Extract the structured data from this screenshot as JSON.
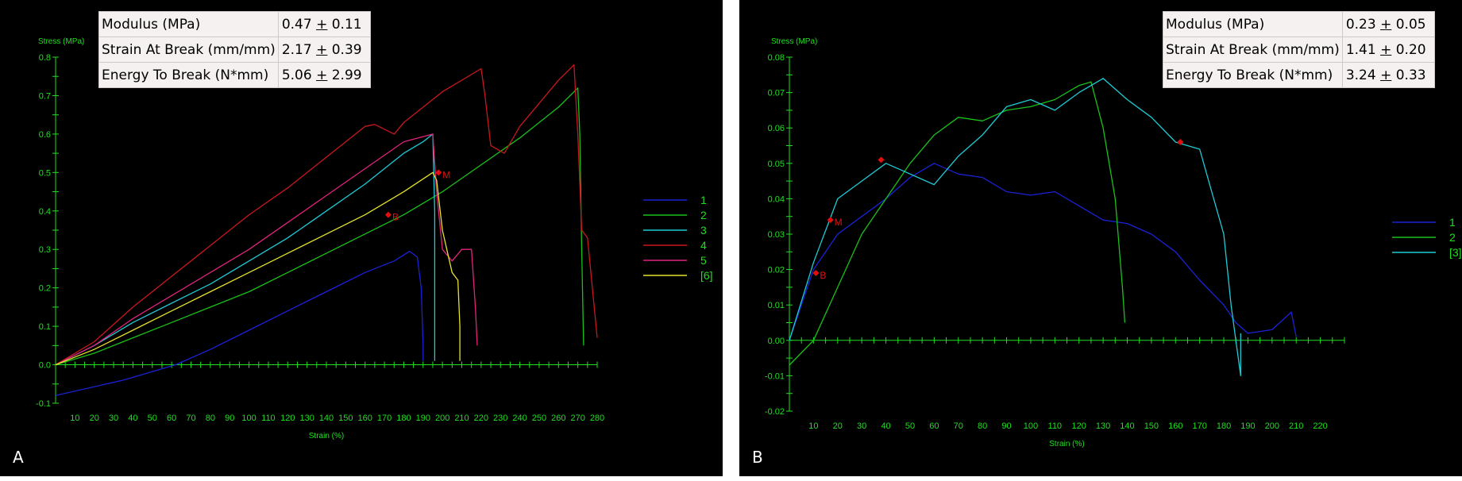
{
  "panels": [
    {
      "id": "a",
      "label": "A",
      "stats": [
        {
          "name": "Modulus (MPa)",
          "value": "0.47",
          "pm": "+",
          "err": "0.11"
        },
        {
          "name": "Strain At Break (mm/mm)",
          "value": "2.17",
          "pm": "+",
          "err": "0.39"
        },
        {
          "name": "Energy To Break (N*mm)",
          "value": "5.06",
          "pm": "+",
          "err": "2.99"
        }
      ],
      "chart_data": {
        "type": "line",
        "ylabel": "Stress (MPa)",
        "xlabel": "Strain (%)",
        "xlim": [
          0,
          280
        ],
        "ylim": [
          -0.1,
          0.8
        ],
        "xticks": [
          10,
          20,
          30,
          40,
          50,
          60,
          70,
          80,
          90,
          100,
          110,
          120,
          130,
          140,
          150,
          160,
          170,
          180,
          190,
          200,
          210,
          220,
          230,
          240,
          250,
          260,
          270,
          280
        ],
        "yticks": [
          -0.1,
          0,
          0.1,
          0.2,
          0.3,
          0.4,
          0.5,
          0.6,
          0.7,
          0.8
        ],
        "ytick_labels": [
          "-0.1",
          "0.0",
          "0.1",
          "0.2",
          "0.3",
          "0.4",
          "0.5",
          "0.6",
          "0.7",
          "0.8"
        ],
        "legend_position": "right",
        "series": [
          {
            "name": "1",
            "color": "#1a22d6",
            "x": [
              0,
              35,
              62,
              80,
              100,
              120,
              140,
              160,
              175,
              183,
              187,
              189,
              190,
              190
            ],
            "y": [
              -0.08,
              -0.04,
              0.0,
              0.04,
              0.09,
              0.14,
              0.19,
              0.24,
              0.27,
              0.295,
              0.28,
              0.2,
              0.05,
              0.01
            ]
          },
          {
            "name": "2",
            "color": "#19c11a",
            "x": [
              0,
              20,
              40,
              60,
              80,
              100,
              120,
              140,
              160,
              180,
              200,
              220,
              240,
              260,
              270,
              271,
              272,
              273
            ],
            "y": [
              0,
              0.03,
              0.07,
              0.11,
              0.15,
              0.19,
              0.24,
              0.29,
              0.34,
              0.39,
              0.45,
              0.52,
              0.59,
              0.67,
              0.72,
              0.6,
              0.3,
              0.05
            ]
          },
          {
            "name": "3",
            "color": "#1ecbd6",
            "x": [
              0,
              20,
              40,
              60,
              80,
              100,
              120,
              140,
              160,
              180,
              190,
              195,
              196,
              196,
              196
            ],
            "y": [
              0,
              0.05,
              0.11,
              0.16,
              0.21,
              0.27,
              0.33,
              0.4,
              0.47,
              0.55,
              0.58,
              0.6,
              0.4,
              0.1,
              0.01
            ]
          },
          {
            "name": "4",
            "color": "#c9171d",
            "x": [
              0,
              20,
              40,
              60,
              80,
              100,
              120,
              140,
              160,
              165,
              175,
              180,
              190,
              200,
              220,
              222,
              225,
              232,
              240,
              260,
              268,
              270,
              272,
              275,
              280
            ],
            "y": [
              0,
              0.06,
              0.15,
              0.23,
              0.31,
              0.39,
              0.46,
              0.54,
              0.62,
              0.625,
              0.6,
              0.63,
              0.67,
              0.71,
              0.77,
              0.7,
              0.57,
              0.55,
              0.62,
              0.74,
              0.78,
              0.6,
              0.35,
              0.33,
              0.07
            ]
          },
          {
            "name": "5",
            "color": "#e0237c",
            "x": [
              0,
              20,
              40,
              60,
              80,
              100,
              120,
              140,
              160,
              180,
              195,
              197,
              200,
              205,
              210,
              215,
              217,
              218
            ],
            "y": [
              0,
              0.05,
              0.12,
              0.18,
              0.24,
              0.3,
              0.37,
              0.44,
              0.51,
              0.58,
              0.6,
              0.45,
              0.3,
              0.27,
              0.3,
              0.3,
              0.15,
              0.05
            ]
          },
          {
            "name": "[6]",
            "color": "#e6e22b",
            "x": [
              0,
              20,
              40,
              60,
              80,
              100,
              120,
              140,
              160,
              180,
              195,
              197,
              200,
              205,
              208,
              209,
              209
            ],
            "y": [
              0,
              0.04,
              0.09,
              0.14,
              0.19,
              0.24,
              0.29,
              0.34,
              0.39,
              0.45,
              0.5,
              0.48,
              0.35,
              0.24,
              0.22,
              0.1,
              0.01
            ]
          }
        ],
        "markers": [
          {
            "label": "M",
            "x": 198,
            "y": 0.5
          },
          {
            "label": "B",
            "x": 172,
            "y": 0.39
          }
        ]
      }
    },
    {
      "id": "b",
      "label": "B",
      "stats": [
        {
          "name": "Modulus (MPa)",
          "value": "0.23",
          "pm": "+",
          "err": "0.05"
        },
        {
          "name": "Strain At Break (mm/mm)",
          "value": "1.41",
          "pm": "+",
          "err": "0.20"
        },
        {
          "name": "Energy To Break (N*mm)",
          "value": "3.24",
          "pm": "+",
          "err": "0.33"
        }
      ],
      "chart_data": {
        "type": "line",
        "ylabel": "Stress (MPa)",
        "xlabel": "Strain (%)",
        "xlim": [
          0,
          230
        ],
        "ylim": [
          -0.02,
          0.08
        ],
        "xticks": [
          10,
          20,
          30,
          40,
          50,
          60,
          70,
          80,
          90,
          100,
          110,
          120,
          130,
          140,
          150,
          160,
          170,
          180,
          190,
          200,
          210,
          220
        ],
        "yticks": [
          -0.02,
          -0.01,
          0,
          0.01,
          0.02,
          0.03,
          0.04,
          0.05,
          0.06,
          0.07,
          0.08
        ],
        "ytick_labels": [
          "-0.02",
          "-0.01",
          "0.00",
          "0.01",
          "0.02",
          "0.03",
          "0.04",
          "0.05",
          "0.06",
          "0.07",
          "0.08"
        ],
        "legend_position": "right",
        "series": [
          {
            "name": "1",
            "color": "#1a22d6",
            "x": [
              0,
              10,
              20,
              30,
              40,
              50,
              60,
              70,
              80,
              90,
              100,
              110,
              120,
              130,
              140,
              150,
              160,
              170,
              180,
              185,
              190,
              200,
              208,
              210
            ],
            "y": [
              0,
              0.02,
              0.03,
              0.035,
              0.04,
              0.046,
              0.05,
              0.047,
              0.046,
              0.042,
              0.041,
              0.042,
              0.038,
              0.034,
              0.033,
              0.03,
              0.025,
              0.017,
              0.01,
              0.005,
              0.002,
              0.003,
              0.008,
              0.001
            ]
          },
          {
            "name": "2",
            "color": "#19c11a",
            "x": [
              0,
              10,
              20,
              30,
              40,
              50,
              60,
              70,
              80,
              90,
              100,
              110,
              120,
              125,
              130,
              135,
              138,
              139
            ],
            "y": [
              -0.007,
              0.0,
              0.015,
              0.03,
              0.04,
              0.05,
              0.058,
              0.063,
              0.062,
              0.065,
              0.066,
              0.068,
              0.072,
              0.073,
              0.06,
              0.04,
              0.015,
              0.005
            ]
          },
          {
            "name": "[3]",
            "color": "#1ecbd6",
            "x": [
              0,
              10,
              20,
              30,
              40,
              50,
              60,
              70,
              80,
              90,
              100,
              110,
              120,
              130,
              140,
              150,
              160,
              170,
              175,
              180,
              183,
              185,
              186,
              187,
              187
            ],
            "y": [
              0,
              0.022,
              0.04,
              0.045,
              0.05,
              0.047,
              0.044,
              0.052,
              0.058,
              0.066,
              0.068,
              0.065,
              0.07,
              0.074,
              0.068,
              0.063,
              0.056,
              0.054,
              0.042,
              0.03,
              0.01,
              0.0,
              -0.005,
              -0.01,
              0.002
            ]
          }
        ],
        "markers": [
          {
            "label": "M",
            "x": 17,
            "y": 0.034
          },
          {
            "label": "B",
            "x": 11,
            "y": 0.019
          },
          {
            "label": "",
            "x": 38,
            "y": 0.051
          },
          {
            "label": "",
            "x": 162,
            "y": 0.056
          }
        ]
      }
    }
  ]
}
